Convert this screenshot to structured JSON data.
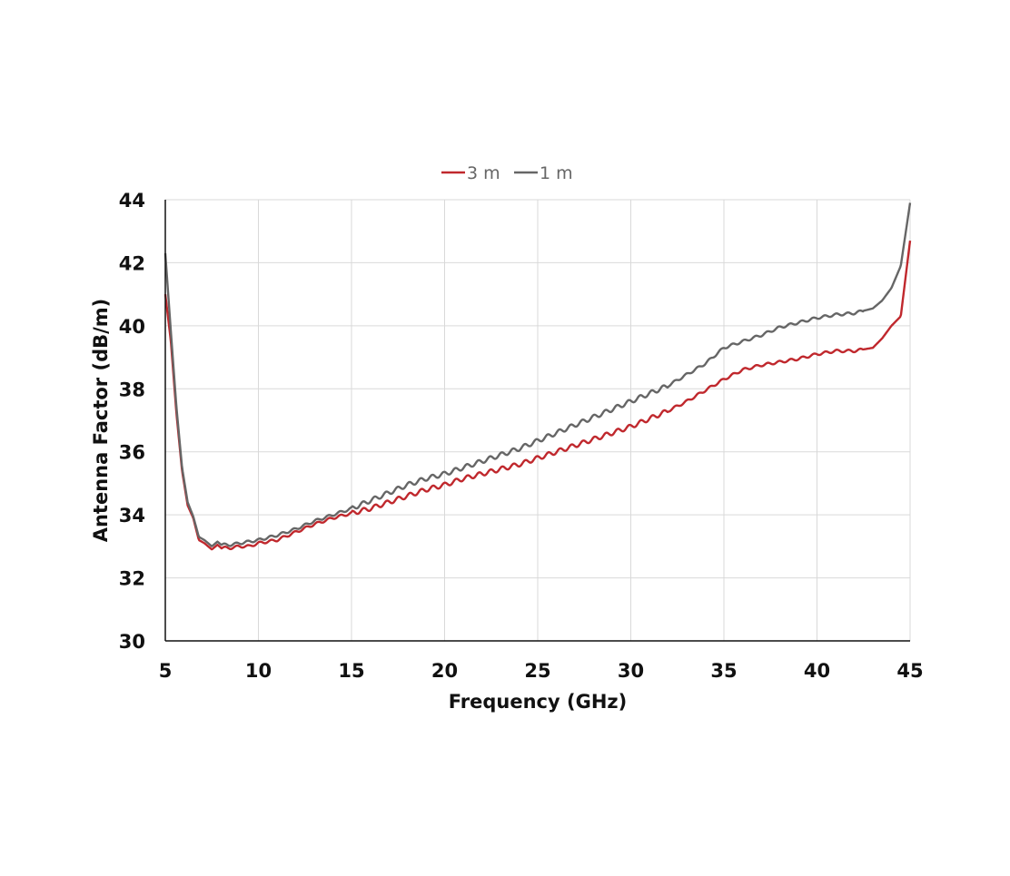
{
  "chart_data": {
    "type": "line",
    "title": "",
    "xlabel": "Frequency  (GHz)",
    "ylabel": "Antenna Factor (dB/m)",
    "xlim": [
      5,
      45
    ],
    "ylim": [
      30,
      44
    ],
    "xticks": [
      5,
      10,
      15,
      20,
      25,
      30,
      35,
      40,
      45
    ],
    "yticks": [
      30,
      32,
      34,
      36,
      38,
      40,
      42,
      44
    ],
    "grid": true,
    "legend_position": "top-center",
    "series": [
      {
        "name": "3 m",
        "color": "#c0282d",
        "x": [
          5,
          5.3,
          5.6,
          5.9,
          6.2,
          6.5,
          6.8,
          7.1,
          7.5,
          7.8,
          8,
          8.5,
          9,
          9.5,
          10,
          11,
          12,
          13,
          14,
          15,
          16,
          17,
          18,
          19,
          20,
          21,
          22,
          23,
          24,
          25,
          26,
          27,
          28,
          29,
          30,
          31,
          32,
          33,
          34,
          35,
          36,
          37,
          38,
          39,
          40,
          41,
          42,
          43,
          43.5,
          44,
          44.5,
          45
        ],
        "y": [
          41.0,
          39.5,
          37.2,
          35.4,
          34.3,
          33.9,
          33.2,
          33.1,
          32.9,
          33.05,
          32.95,
          32.95,
          33.0,
          33.0,
          33.1,
          33.2,
          33.45,
          33.7,
          33.9,
          34.05,
          34.2,
          34.4,
          34.6,
          34.8,
          34.95,
          35.15,
          35.3,
          35.45,
          35.6,
          35.8,
          36.0,
          36.2,
          36.4,
          36.6,
          36.8,
          37.05,
          37.3,
          37.6,
          37.95,
          38.3,
          38.6,
          38.75,
          38.85,
          38.95,
          39.1,
          39.2,
          39.2,
          39.3,
          39.6,
          40.0,
          40.3,
          42.7
        ]
      },
      {
        "name": "1 m",
        "color": "#666666",
        "x": [
          5,
          5.3,
          5.6,
          5.9,
          6.2,
          6.5,
          6.8,
          7.1,
          7.5,
          7.8,
          8,
          8.5,
          9,
          9.5,
          10,
          11,
          12,
          13,
          14,
          15,
          16,
          17,
          18,
          19,
          20,
          21,
          22,
          23,
          24,
          25,
          26,
          27,
          28,
          29,
          30,
          31,
          32,
          33,
          34,
          35,
          36,
          37,
          38,
          39,
          40,
          41,
          42,
          43,
          43.5,
          44,
          44.5,
          45
        ],
        "y": [
          42.3,
          39.8,
          37.4,
          35.5,
          34.4,
          33.95,
          33.3,
          33.2,
          33.0,
          33.15,
          33.05,
          33.05,
          33.1,
          33.15,
          33.2,
          33.35,
          33.55,
          33.8,
          34.0,
          34.2,
          34.45,
          34.7,
          34.95,
          35.15,
          35.3,
          35.5,
          35.7,
          35.9,
          36.1,
          36.35,
          36.6,
          36.85,
          37.1,
          37.35,
          37.6,
          37.85,
          38.1,
          38.45,
          38.8,
          39.3,
          39.5,
          39.7,
          39.95,
          40.1,
          40.25,
          40.35,
          40.4,
          40.55,
          40.8,
          41.2,
          41.9,
          43.9
        ]
      }
    ]
  }
}
